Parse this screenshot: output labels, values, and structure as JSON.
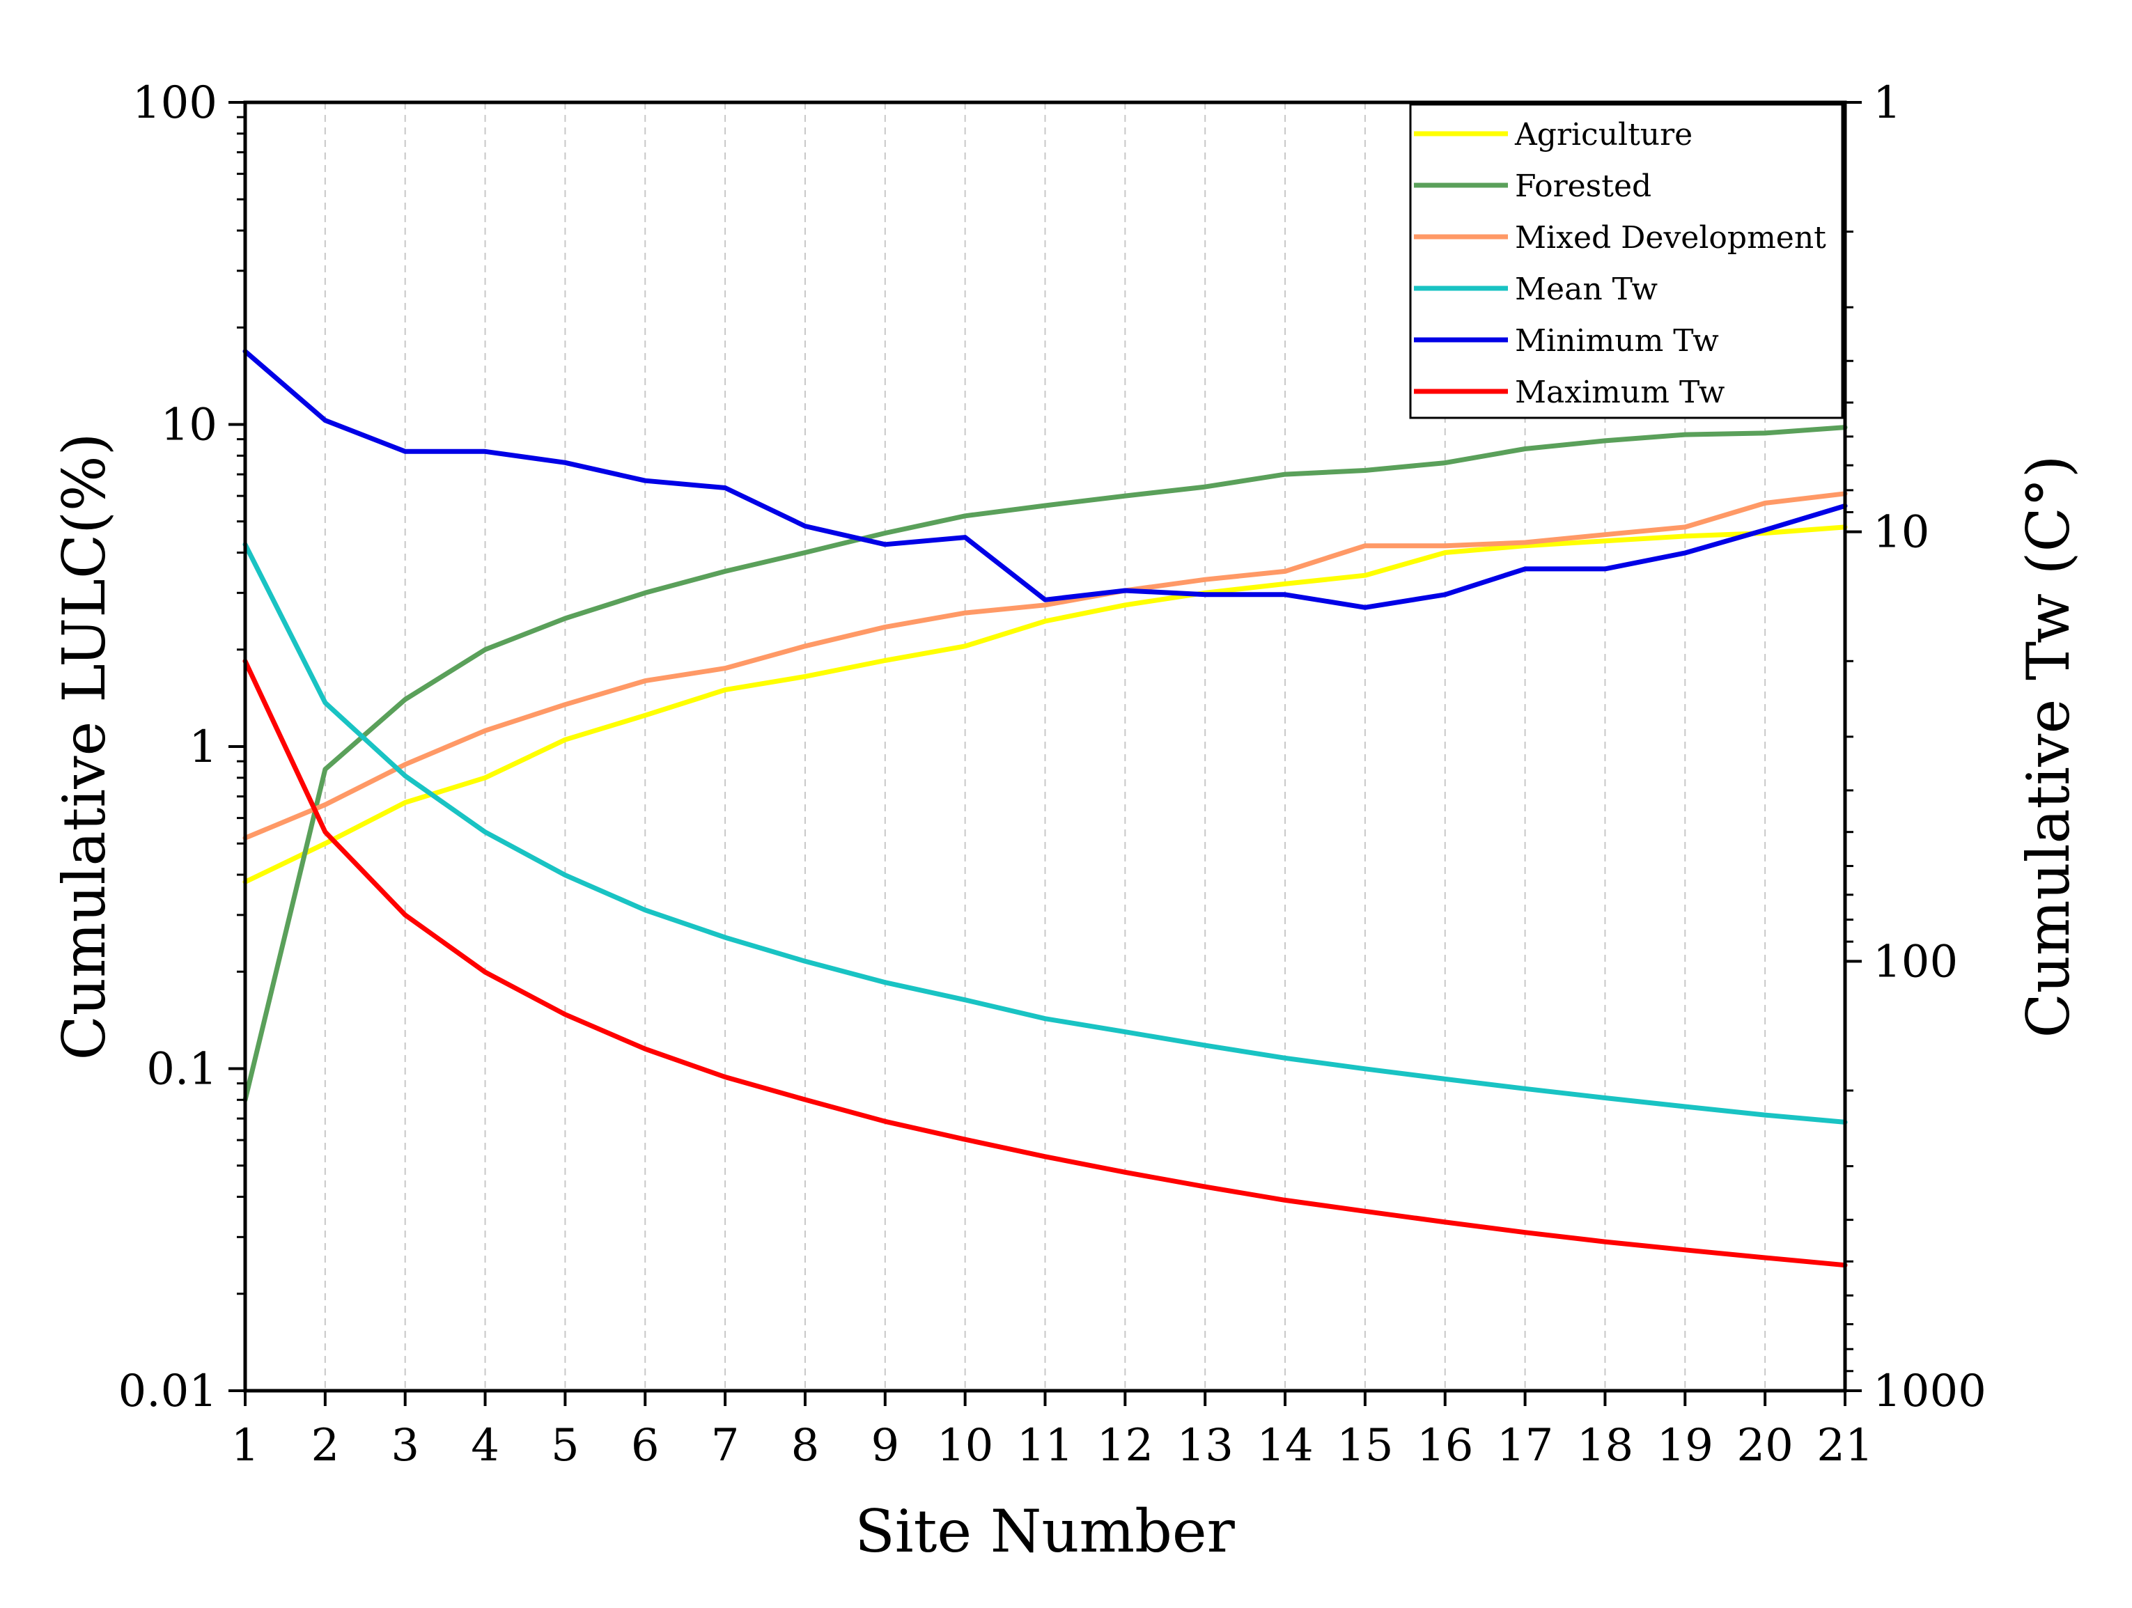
{
  "chart_data": {
    "type": "line",
    "xlabel": "Site Number",
    "ylabel_left": "Cumulative LULC(%)",
    "ylabel_right": "Cumulative Tw (C°)",
    "y_left_scale": "log",
    "y_left_range": [
      0.01,
      100
    ],
    "y_left_ticks": [
      {
        "v": 0.01,
        "label": "0.01"
      },
      {
        "v": 0.1,
        "label": "0.1"
      },
      {
        "v": 1,
        "label": "1"
      },
      {
        "v": 10,
        "label": "10"
      },
      {
        "v": 100,
        "label": "100"
      }
    ],
    "y_right_scale": "log-reversed",
    "y_right_range": [
      1,
      1000
    ],
    "y_right_ticks": [
      {
        "v": 1,
        "label": "1"
      },
      {
        "v": 10,
        "label": "10"
      },
      {
        "v": 100,
        "label": "100"
      },
      {
        "v": 1000,
        "label": "1000"
      }
    ],
    "x_ticks": [
      {
        "v": 1,
        "label": "1"
      },
      {
        "v": 2,
        "label": "2"
      },
      {
        "v": 3,
        "label": "3"
      },
      {
        "v": 4,
        "label": "4"
      },
      {
        "v": 5,
        "label": "5"
      },
      {
        "v": 6,
        "label": "6"
      },
      {
        "v": 7,
        "label": "7"
      },
      {
        "v": 8,
        "label": "8"
      },
      {
        "v": 9,
        "label": "9"
      },
      {
        "v": 10,
        "label": "10"
      },
      {
        "v": 11,
        "label": "11"
      },
      {
        "v": 12,
        "label": "12"
      },
      {
        "v": 13,
        "label": "13"
      },
      {
        "v": 14,
        "label": "14"
      },
      {
        "v": 15,
        "label": "15"
      },
      {
        "v": 16,
        "label": "16"
      },
      {
        "v": 17,
        "label": "17"
      },
      {
        "v": 18,
        "label": "18"
      },
      {
        "v": 19,
        "label": "19"
      },
      {
        "v": 20,
        "label": "20"
      },
      {
        "v": 21,
        "label": "21"
      }
    ],
    "grid": "vertical dashed",
    "legend_position": "top-right",
    "x": [
      1,
      2,
      3,
      4,
      5,
      6,
      7,
      8,
      9,
      10,
      11,
      12,
      13,
      14,
      15,
      16,
      17,
      18,
      19,
      20,
      21
    ],
    "series": [
      {
        "name": "Agriculture",
        "color": "#ffff00",
        "axis": "left",
        "values": [
          0.38,
          0.5,
          0.67,
          0.8,
          1.05,
          1.25,
          1.5,
          1.65,
          1.85,
          2.05,
          2.45,
          2.75,
          3.0,
          3.2,
          3.4,
          4.0,
          4.2,
          4.35,
          4.5,
          4.6,
          4.8
        ]
      },
      {
        "name": "Forested",
        "color": "#5aa05a",
        "axis": "left",
        "values": [
          0.08,
          0.85,
          1.4,
          2.0,
          2.5,
          3.0,
          3.5,
          4.0,
          4.6,
          5.2,
          5.6,
          6.0,
          6.4,
          7.0,
          7.2,
          7.6,
          8.4,
          8.9,
          9.3,
          9.4,
          9.8
        ]
      },
      {
        "name": "Mixed Development",
        "color": "#ff9966",
        "axis": "left",
        "values": [
          0.52,
          0.66,
          0.88,
          1.12,
          1.35,
          1.6,
          1.75,
          2.05,
          2.35,
          2.6,
          2.75,
          3.05,
          3.3,
          3.5,
          4.2,
          4.2,
          4.3,
          4.55,
          4.8,
          5.7,
          6.1
        ]
      },
      {
        "name": "Mean Tw",
        "color": "#19c3c3",
        "axis": "right",
        "values": [
          10.7,
          25,
          37,
          50,
          63,
          76,
          88,
          100,
          112,
          123,
          136,
          146,
          157,
          168,
          178,
          188,
          198,
          208,
          218,
          228,
          237
        ]
      },
      {
        "name": "Minimum Tw",
        "color": "#0000e6",
        "axis": "right",
        "values": [
          3.8,
          5.5,
          6.5,
          6.5,
          6.9,
          7.6,
          7.9,
          9.7,
          10.7,
          10.3,
          14.4,
          13.7,
          14.0,
          14.0,
          15.0,
          14.0,
          12.2,
          12.2,
          11.2,
          9.9,
          8.7
        ]
      },
      {
        "name": "Maximum Tw",
        "color": "#ff0000",
        "axis": "right",
        "values": [
          20,
          50,
          78,
          106,
          133,
          160,
          186,
          210,
          236,
          260,
          285,
          310,
          335,
          360,
          382,
          405,
          428,
          450,
          470,
          490,
          510
        ]
      }
    ]
  }
}
